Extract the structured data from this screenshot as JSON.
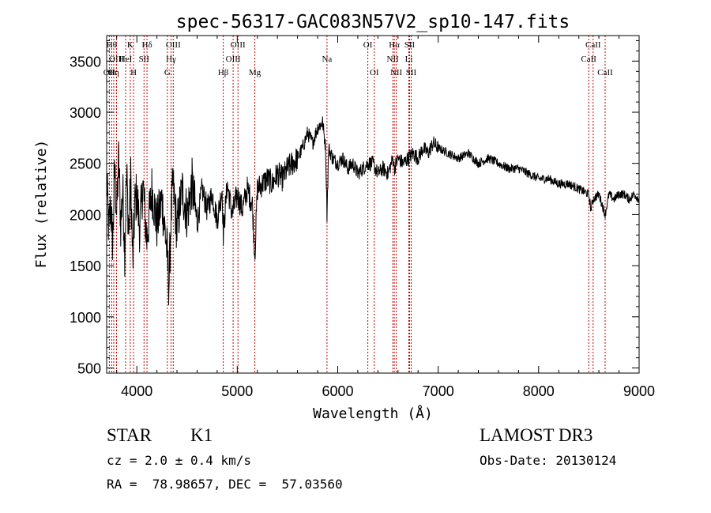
{
  "chart_data": {
    "type": "line",
    "title": "spec-56317-GAC083N57V2_sp10-147.fits",
    "xlabel": "Wavelength (Å)",
    "ylabel": "Flux (relative)",
    "xlim": [
      3700,
      9000
    ],
    "ylim": [
      450,
      3750
    ],
    "xticks": [
      4000,
      5000,
      6000,
      7000,
      8000,
      9000
    ],
    "yticks": [
      500,
      1000,
      1500,
      2000,
      2500,
      3000,
      3500
    ],
    "grid": false,
    "series": [
      {
        "name": "spectrum",
        "x": [
          3700,
          3720,
          3740,
          3760,
          3780,
          3800,
          3820,
          3840,
          3860,
          3880,
          3900,
          3920,
          3940,
          3960,
          3980,
          4000,
          4030,
          4060,
          4100,
          4150,
          4200,
          4250,
          4300,
          4320,
          4340,
          4360,
          4400,
          4450,
          4500,
          4550,
          4600,
          4650,
          4700,
          4750,
          4800,
          4850,
          4861,
          4900,
          4950,
          5000,
          5050,
          5100,
          5150,
          5175,
          5200,
          5250,
          5300,
          5350,
          5400,
          5450,
          5500,
          5550,
          5600,
          5650,
          5700,
          5750,
          5800,
          5850,
          5880,
          5893,
          5910,
          5950,
          6000,
          6050,
          6100,
          6150,
          6200,
          6250,
          6300,
          6350,
          6400,
          6450,
          6500,
          6550,
          6563,
          6600,
          6650,
          6700,
          6750,
          6800,
          6850,
          6900,
          6950,
          7000,
          7100,
          7200,
          7300,
          7400,
          7500,
          7600,
          7700,
          7800,
          7900,
          8000,
          8100,
          8200,
          8300,
          8400,
          8498,
          8520,
          8542,
          8600,
          8662,
          8700,
          8750,
          8800,
          8850,
          8900,
          8950,
          9000
        ],
        "y": [
          2350,
          1850,
          2100,
          1700,
          2450,
          2000,
          2550,
          1900,
          2250,
          1650,
          2400,
          1800,
          2350,
          1500,
          2100,
          2200,
          1850,
          2300,
          1750,
          2250,
          1900,
          2150,
          1650,
          1300,
          1950,
          2300,
          1850,
          2250,
          2000,
          2300,
          1900,
          2250,
          2050,
          2200,
          1950,
          2250,
          1800,
          2300,
          2000,
          2200,
          2050,
          2250,
          2100,
          1600,
          2250,
          2300,
          2350,
          2300,
          2400,
          2350,
          2450,
          2500,
          2550,
          2650,
          2800,
          2700,
          2850,
          2900,
          2650,
          2000,
          2650,
          2550,
          2500,
          2550,
          2450,
          2500,
          2400,
          2450,
          2500,
          2500,
          2400,
          2450,
          2400,
          2550,
          2450,
          2550,
          2500,
          2550,
          2600,
          2550,
          2650,
          2600,
          2700,
          2650,
          2600,
          2550,
          2600,
          2500,
          2550,
          2500,
          2450,
          2450,
          2400,
          2350,
          2350,
          2300,
          2300,
          2250,
          2200,
          2050,
          2150,
          2200,
          2000,
          2200,
          2150,
          2200,
          2200,
          2150,
          2200,
          2150
        ]
      }
    ],
    "lines": [
      {
        "wave": 3727,
        "name": "OII",
        "row": 2
      },
      {
        "wave": 3750,
        "name": "Hθ",
        "row": 0
      },
      {
        "wave": 3771,
        "name": "Hη",
        "row": 2
      },
      {
        "wave": 3798,
        "name": "OIII",
        "row": 1
      },
      {
        "wave": 3889,
        "name": "HeI",
        "row": 1
      },
      {
        "wave": 3934,
        "name": "K",
        "row": 0
      },
      {
        "wave": 3968,
        "name": "H",
        "row": 2
      },
      {
        "wave": 4072,
        "name": "SII",
        "row": 1
      },
      {
        "wave": 4102,
        "name": "Hδ",
        "row": 0
      },
      {
        "wave": 4304,
        "name": "G",
        "row": 2
      },
      {
        "wave": 4341,
        "name": "Hγ",
        "row": 1
      },
      {
        "wave": 4363,
        "name": "OIII",
        "row": 0
      },
      {
        "wave": 4861,
        "name": "Hβ",
        "row": 2
      },
      {
        "wave": 4959,
        "name": "OIII",
        "row": 1
      },
      {
        "wave": 5007,
        "name": "OIII",
        "row": 0
      },
      {
        "wave": 5175,
        "name": "Mg",
        "row": 2
      },
      {
        "wave": 5893,
        "name": "Na",
        "row": 1
      },
      {
        "wave": 6300,
        "name": "OI",
        "row": 0
      },
      {
        "wave": 6364,
        "name": "OI",
        "row": 2
      },
      {
        "wave": 6548,
        "name": "NII",
        "row": 1
      },
      {
        "wave": 6563,
        "name": "Hα",
        "row": 0
      },
      {
        "wave": 6583,
        "name": "NII",
        "row": 2
      },
      {
        "wave": 6708,
        "name": "Li",
        "row": 1
      },
      {
        "wave": 6716,
        "name": "SII",
        "row": 0
      },
      {
        "wave": 6731,
        "name": "SII",
        "row": 2
      },
      {
        "wave": 8498,
        "name": "CaII",
        "row": 1
      },
      {
        "wave": 8542,
        "name": "CaII",
        "row": 0
      },
      {
        "wave": 8662,
        "name": "CaII",
        "row": 2
      }
    ]
  },
  "info": {
    "class": "STAR",
    "subclass": "K1",
    "survey": "LAMOST DR3",
    "cz": "cz = 2.0 ± 0.4 km/s",
    "obs_date": "Obs-Date: 20130124",
    "coords": "RA =  78.98657, DEC =  57.03560"
  },
  "colors": {
    "axis": "#000000",
    "spectrum": "#000000",
    "line_marker": "#cc0000",
    "background": "#ffffff"
  }
}
